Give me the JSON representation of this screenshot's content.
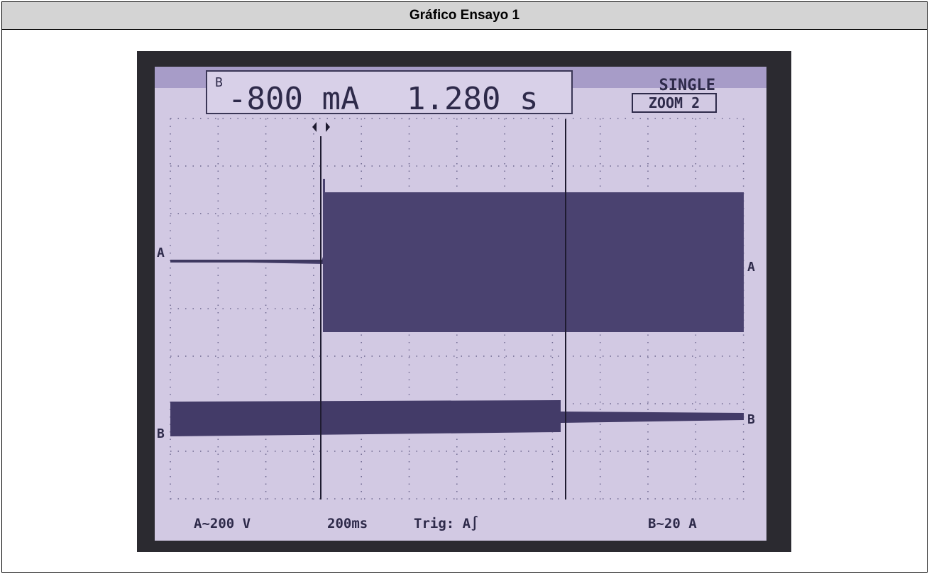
{
  "header": {
    "title": "Gráfico Ensayo 1"
  },
  "screen": {
    "top_left": {
      "channel": "B",
      "reading": "-800 mA"
    },
    "top_middle": {
      "reading": "1.280 s"
    },
    "top_right": {
      "mode": "SINGLE",
      "zoom": "ZOOM 2"
    },
    "markers": {
      "a_left": "A",
      "a_right": "A",
      "b_left": "B",
      "b_right": "B"
    },
    "bottom": {
      "channel_a": "A~200 V",
      "timebase": "200ms",
      "trigger": "Trig: A∫",
      "channel_b": "B~20 A"
    }
  }
}
